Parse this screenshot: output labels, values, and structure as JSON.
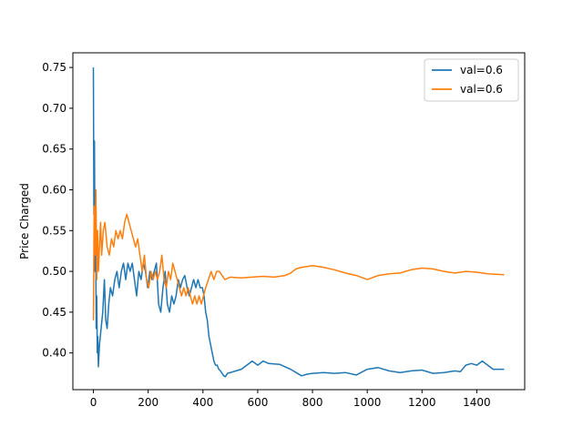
{
  "chart_data": {
    "type": "line",
    "title": "",
    "xlabel": "",
    "ylabel": "Price Charged",
    "xlim": [
      -75,
      1575
    ],
    "ylim": [
      0.355,
      0.768
    ],
    "xticks": [
      0,
      200,
      400,
      600,
      800,
      1000,
      1200,
      1400
    ],
    "yticks": [
      0.4,
      0.45,
      0.5,
      0.55,
      0.6,
      0.65,
      0.7,
      0.75
    ],
    "xtick_labels": [
      "0",
      "200",
      "400",
      "600",
      "800",
      "1000",
      "1200",
      "1400"
    ],
    "ytick_labels": [
      "0.40",
      "0.45",
      "0.50",
      "0.55",
      "0.60",
      "0.65",
      "0.70",
      "0.75"
    ],
    "grid": false,
    "legend_position": "top-right",
    "series": [
      {
        "name": "val=0.6",
        "color": "#1f77b4",
        "points": [
          [
            0,
            0.75
          ],
          [
            2,
            0.57
          ],
          [
            4,
            0.66
          ],
          [
            6,
            0.5
          ],
          [
            8,
            0.56
          ],
          [
            10,
            0.43
          ],
          [
            12,
            0.47
          ],
          [
            14,
            0.4
          ],
          [
            16,
            0.42
          ],
          [
            18,
            0.383
          ],
          [
            22,
            0.41
          ],
          [
            28,
            0.43
          ],
          [
            34,
            0.45
          ],
          [
            40,
            0.49
          ],
          [
            45,
            0.44
          ],
          [
            50,
            0.43
          ],
          [
            56,
            0.46
          ],
          [
            62,
            0.48
          ],
          [
            70,
            0.47
          ],
          [
            78,
            0.49
          ],
          [
            86,
            0.5
          ],
          [
            94,
            0.48
          ],
          [
            102,
            0.5
          ],
          [
            110,
            0.51
          ],
          [
            118,
            0.49
          ],
          [
            126,
            0.51
          ],
          [
            134,
            0.5
          ],
          [
            142,
            0.51
          ],
          [
            150,
            0.49
          ],
          [
            158,
            0.47
          ],
          [
            166,
            0.5
          ],
          [
            174,
            0.49
          ],
          [
            182,
            0.51
          ],
          [
            190,
            0.5
          ],
          [
            198,
            0.48
          ],
          [
            206,
            0.5
          ],
          [
            214,
            0.49
          ],
          [
            222,
            0.5
          ],
          [
            230,
            0.51
          ],
          [
            238,
            0.46
          ],
          [
            246,
            0.45
          ],
          [
            254,
            0.48
          ],
          [
            262,
            0.5
          ],
          [
            270,
            0.46
          ],
          [
            278,
            0.45
          ],
          [
            286,
            0.47
          ],
          [
            294,
            0.46
          ],
          [
            302,
            0.47
          ],
          [
            310,
            0.49
          ],
          [
            318,
            0.48
          ],
          [
            326,
            0.49
          ],
          [
            334,
            0.495
          ],
          [
            342,
            0.48
          ],
          [
            350,
            0.47
          ],
          [
            358,
            0.48
          ],
          [
            366,
            0.49
          ],
          [
            374,
            0.48
          ],
          [
            382,
            0.49
          ],
          [
            390,
            0.48
          ],
          [
            398,
            0.48
          ],
          [
            404,
            0.47
          ],
          [
            410,
            0.45
          ],
          [
            416,
            0.44
          ],
          [
            422,
            0.42
          ],
          [
            428,
            0.41
          ],
          [
            434,
            0.4
          ],
          [
            440,
            0.39
          ],
          [
            446,
            0.385
          ],
          [
            452,
            0.385
          ],
          [
            458,
            0.38
          ],
          [
            464,
            0.378
          ],
          [
            470,
            0.375
          ],
          [
            476,
            0.372
          ],
          [
            482,
            0.371
          ],
          [
            490,
            0.375
          ],
          [
            520,
            0.378
          ],
          [
            540,
            0.38
          ],
          [
            560,
            0.385
          ],
          [
            580,
            0.39
          ],
          [
            600,
            0.385
          ],
          [
            620,
            0.39
          ],
          [
            640,
            0.387
          ],
          [
            680,
            0.386
          ],
          [
            700,
            0.383
          ],
          [
            720,
            0.38
          ],
          [
            740,
            0.376
          ],
          [
            760,
            0.372
          ],
          [
            780,
            0.374
          ],
          [
            800,
            0.375
          ],
          [
            840,
            0.376
          ],
          [
            880,
            0.375
          ],
          [
            920,
            0.376
          ],
          [
            960,
            0.373
          ],
          [
            1000,
            0.38
          ],
          [
            1040,
            0.382
          ],
          [
            1080,
            0.378
          ],
          [
            1120,
            0.376
          ],
          [
            1160,
            0.378
          ],
          [
            1200,
            0.379
          ],
          [
            1240,
            0.375
          ],
          [
            1280,
            0.376
          ],
          [
            1320,
            0.378
          ],
          [
            1340,
            0.377
          ],
          [
            1360,
            0.385
          ],
          [
            1380,
            0.387
          ],
          [
            1400,
            0.385
          ],
          [
            1420,
            0.39
          ],
          [
            1440,
            0.385
          ],
          [
            1460,
            0.38
          ],
          [
            1500,
            0.38
          ]
        ]
      },
      {
        "name": "val=0.6",
        "color": "#ff7f0e",
        "points": [
          [
            0,
            0.44
          ],
          [
            3,
            0.58
          ],
          [
            6,
            0.52
          ],
          [
            9,
            0.6
          ],
          [
            12,
            0.49
          ],
          [
            15,
            0.55
          ],
          [
            18,
            0.5
          ],
          [
            22,
            0.53
          ],
          [
            26,
            0.56
          ],
          [
            30,
            0.52
          ],
          [
            36,
            0.55
          ],
          [
            42,
            0.56
          ],
          [
            50,
            0.53
          ],
          [
            58,
            0.52
          ],
          [
            66,
            0.54
          ],
          [
            74,
            0.53
          ],
          [
            82,
            0.55
          ],
          [
            90,
            0.54
          ],
          [
            98,
            0.55
          ],
          [
            106,
            0.54
          ],
          [
            114,
            0.56
          ],
          [
            122,
            0.57
          ],
          [
            130,
            0.56
          ],
          [
            138,
            0.55
          ],
          [
            146,
            0.54
          ],
          [
            154,
            0.53
          ],
          [
            162,
            0.54
          ],
          [
            170,
            0.52
          ],
          [
            178,
            0.5
          ],
          [
            186,
            0.52
          ],
          [
            194,
            0.49
          ],
          [
            202,
            0.48
          ],
          [
            210,
            0.5
          ],
          [
            218,
            0.49
          ],
          [
            226,
            0.5
          ],
          [
            234,
            0.49
          ],
          [
            242,
            0.5
          ],
          [
            250,
            0.52
          ],
          [
            258,
            0.49
          ],
          [
            266,
            0.48
          ],
          [
            274,
            0.5
          ],
          [
            282,
            0.49
          ],
          [
            290,
            0.51
          ],
          [
            298,
            0.5
          ],
          [
            306,
            0.49
          ],
          [
            314,
            0.48
          ],
          [
            322,
            0.47
          ],
          [
            330,
            0.48
          ],
          [
            338,
            0.47
          ],
          [
            346,
            0.48
          ],
          [
            354,
            0.47
          ],
          [
            362,
            0.46
          ],
          [
            370,
            0.47
          ],
          [
            378,
            0.46
          ],
          [
            386,
            0.47
          ],
          [
            394,
            0.46
          ],
          [
            402,
            0.47
          ],
          [
            410,
            0.48
          ],
          [
            420,
            0.49
          ],
          [
            430,
            0.5
          ],
          [
            440,
            0.49
          ],
          [
            450,
            0.5
          ],
          [
            460,
            0.5
          ],
          [
            470,
            0.495
          ],
          [
            480,
            0.49
          ],
          [
            500,
            0.493
          ],
          [
            540,
            0.492
          ],
          [
            580,
            0.493
          ],
          [
            620,
            0.494
          ],
          [
            660,
            0.493
          ],
          [
            700,
            0.495
          ],
          [
            720,
            0.498
          ],
          [
            740,
            0.503
          ],
          [
            760,
            0.505
          ],
          [
            780,
            0.506
          ],
          [
            800,
            0.507
          ],
          [
            840,
            0.505
          ],
          [
            880,
            0.502
          ],
          [
            920,
            0.498
          ],
          [
            960,
            0.495
          ],
          [
            1000,
            0.49
          ],
          [
            1040,
            0.495
          ],
          [
            1080,
            0.497
          ],
          [
            1120,
            0.498
          ],
          [
            1160,
            0.502
          ],
          [
            1200,
            0.504
          ],
          [
            1240,
            0.503
          ],
          [
            1280,
            0.5
          ],
          [
            1320,
            0.498
          ],
          [
            1360,
            0.5
          ],
          [
            1400,
            0.499
          ],
          [
            1440,
            0.497
          ],
          [
            1500,
            0.496
          ]
        ]
      }
    ]
  }
}
